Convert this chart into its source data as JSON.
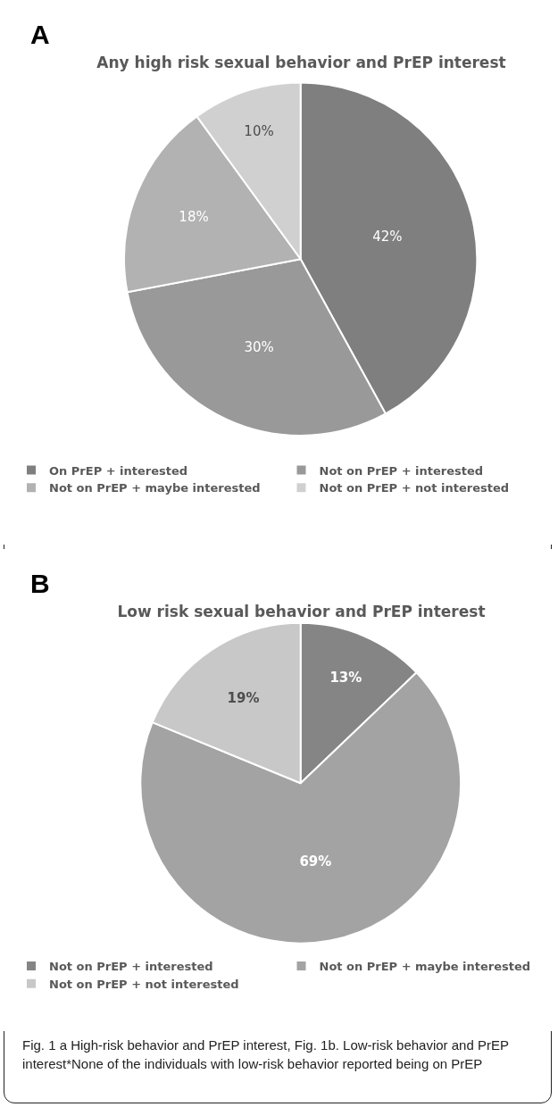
{
  "chart_data": [
    {
      "type": "pie",
      "title": "Any high risk sexual behavior and PrEP interest",
      "annotations": [
        "A"
      ],
      "categories": [
        "On PrEP + interested",
        "Not on PrEP + interested",
        "Not on PrEP + maybe interested",
        "Not on PrEP + not interested"
      ],
      "values": [
        42,
        30,
        18,
        10
      ],
      "value_labels": [
        "42%",
        "30%",
        "18%",
        "10%"
      ],
      "colors": [
        "#7f7f7f",
        "#999999",
        "#b2b2b2",
        "#d0d0d0"
      ],
      "legend": "bottom"
    },
    {
      "type": "pie",
      "title": "Low risk sexual behavior and PrEP interest",
      "annotations": [
        "B",
        "Fig. 1 a High-risk behavior and PrEP interest, Fig. 1b. Low-risk behavior and PrEP interest*None of the individuals with low-risk behavior reported being on PrEP"
      ],
      "categories": [
        "Not on PrEP + interested",
        "Not on PrEP + maybe interested",
        "Not on PrEP + not interested"
      ],
      "values": [
        13,
        69,
        19
      ],
      "value_labels": [
        "13%",
        "69%",
        "19%"
      ],
      "colors": [
        "#858585",
        "#a3a3a3",
        "#c8c8c8"
      ],
      "legend": "bottom"
    }
  ]
}
